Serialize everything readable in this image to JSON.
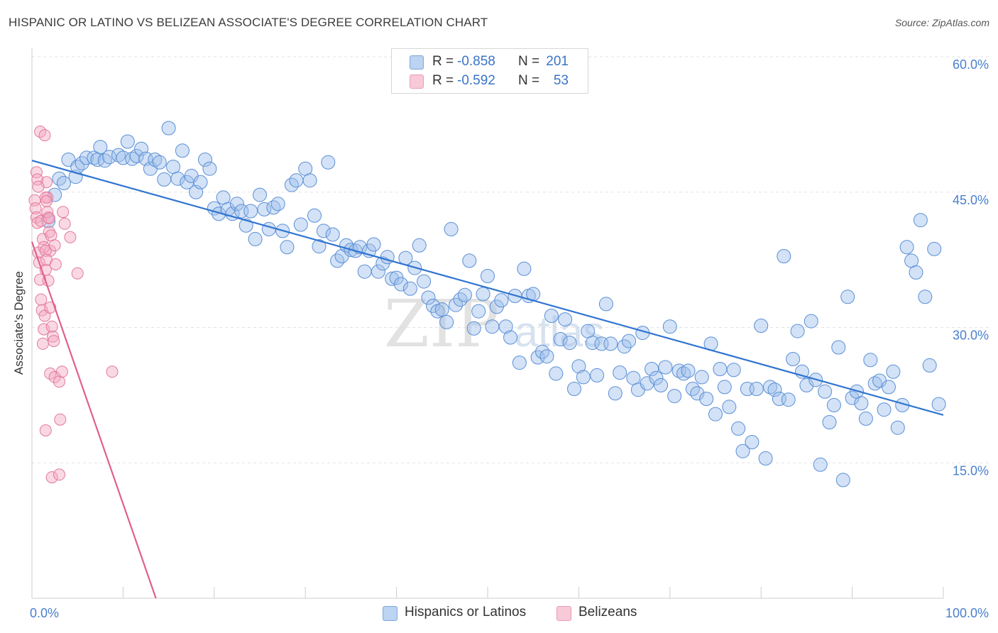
{
  "title": "HISPANIC OR LATINO VS BELIZEAN ASSOCIATE'S DEGREE CORRELATION CHART",
  "source": "Source: ZipAtlas.com",
  "watermark": {
    "zip": "ZIP",
    "atlas": "atlas"
  },
  "legend": {
    "rows": [
      {
        "r_label": "R =",
        "r_value": "-0.858",
        "n_label": "N =",
        "n_value": "201",
        "color": "#9dbfea"
      },
      {
        "r_label": "R =",
        "r_value": "-0.592",
        "n_label": "N =",
        "n_value": "53",
        "color": "#f3a9c0"
      }
    ]
  },
  "bottom_legend": {
    "items": [
      "Hispanics or Latinos",
      "Belizeans"
    ]
  },
  "chart_data": {
    "type": "scatter",
    "ylabel": "Associate's Degree",
    "xlabel": "",
    "xlim": [
      0,
      100
    ],
    "ylim": [
      0,
      60
    ],
    "x_tick_labels": [
      "0.0%",
      "100.0%"
    ],
    "y_ticks": [
      15,
      30,
      45,
      60
    ],
    "y_tick_labels": [
      "15.0%",
      "30.0%",
      "45.0%",
      "60.0%"
    ],
    "grid": true,
    "series": [
      {
        "name": "Hispanics or Latinos",
        "color": "#9dbfea",
        "stroke": "#5a8fd6",
        "trend": {
          "x": [
            0,
            100
          ],
          "y": [
            48.5,
            20.3
          ]
        },
        "points": [
          [
            1.8,
            41.8
          ],
          [
            2.5,
            44.7
          ],
          [
            3,
            46.5
          ],
          [
            3.5,
            46
          ],
          [
            4,
            48.6
          ],
          [
            4.8,
            46.7
          ],
          [
            5,
            47.8
          ],
          [
            5.5,
            48.2
          ],
          [
            6,
            48.8
          ],
          [
            6.8,
            48.8
          ],
          [
            7.2,
            48.6
          ],
          [
            7.5,
            50
          ],
          [
            8,
            48.5
          ],
          [
            8.5,
            48.9
          ],
          [
            9.5,
            49.1
          ],
          [
            10,
            48.8
          ],
          [
            10.5,
            50.6
          ],
          [
            11,
            48.7
          ],
          [
            11.5,
            49
          ],
          [
            12,
            49.8
          ],
          [
            12.5,
            48.7
          ],
          [
            13,
            47.6
          ],
          [
            13.5,
            48.6
          ],
          [
            14,
            48.3
          ],
          [
            14.5,
            46.4
          ],
          [
            15,
            52.1
          ],
          [
            15.5,
            47.8
          ],
          [
            16,
            46.5
          ],
          [
            16.5,
            49.6
          ],
          [
            17,
            46.1
          ],
          [
            17.5,
            46.8
          ],
          [
            18,
            45
          ],
          [
            18.5,
            46.1
          ],
          [
            19,
            48.6
          ],
          [
            19.5,
            47.6
          ],
          [
            20,
            43.2
          ],
          [
            20.5,
            42.6
          ],
          [
            21,
            44.4
          ],
          [
            21.5,
            43.1
          ],
          [
            22,
            42.6
          ],
          [
            22.5,
            43.7
          ],
          [
            23,
            42.9
          ],
          [
            23.5,
            41.3
          ],
          [
            24,
            42.9
          ],
          [
            24.5,
            39.8
          ],
          [
            25,
            44.7
          ],
          [
            25.5,
            43.1
          ],
          [
            26,
            40.9
          ],
          [
            26.5,
            43.3
          ],
          [
            27,
            43.7
          ],
          [
            27.5,
            40.7
          ],
          [
            28,
            38.9
          ],
          [
            28.5,
            45.8
          ],
          [
            29,
            46.3
          ],
          [
            29.5,
            41.4
          ],
          [
            30,
            47.6
          ],
          [
            30.5,
            46.3
          ],
          [
            31,
            42.4
          ],
          [
            31.5,
            39
          ],
          [
            32,
            40.7
          ],
          [
            32.5,
            48.3
          ],
          [
            33,
            40.3
          ],
          [
            33.5,
            37.4
          ],
          [
            34,
            37.9
          ],
          [
            34.5,
            39.1
          ],
          [
            35,
            38.6
          ],
          [
            35.5,
            38.5
          ],
          [
            36,
            38.9
          ],
          [
            36.5,
            36.2
          ],
          [
            37,
            38.5
          ],
          [
            37.5,
            39.2
          ],
          [
            38,
            36.2
          ],
          [
            38.5,
            37.1
          ],
          [
            39,
            37.8
          ],
          [
            39.5,
            35.4
          ],
          [
            40,
            35.5
          ],
          [
            40.5,
            34.8
          ],
          [
            41,
            37.7
          ],
          [
            41.5,
            34.3
          ],
          [
            42,
            36.6
          ],
          [
            42.5,
            39.1
          ],
          [
            43,
            35.1
          ],
          [
            43.5,
            33.3
          ],
          [
            44,
            32.4
          ],
          [
            44.5,
            31.8
          ],
          [
            45,
            32
          ],
          [
            45.5,
            30.6
          ],
          [
            46,
            40.9
          ],
          [
            46.5,
            32.5
          ],
          [
            47,
            33.1
          ],
          [
            47.5,
            33.6
          ],
          [
            48,
            37.4
          ],
          [
            48.5,
            29.9
          ],
          [
            49,
            31.8
          ],
          [
            49.5,
            33.7
          ],
          [
            50,
            35.7
          ],
          [
            50.5,
            30.1
          ],
          [
            51,
            32.3
          ],
          [
            51.5,
            33
          ],
          [
            52,
            30.1
          ],
          [
            52.5,
            28.9
          ],
          [
            53,
            33.5
          ],
          [
            53.5,
            26.1
          ],
          [
            54,
            36.5
          ],
          [
            54.5,
            33.5
          ],
          [
            55,
            33.7
          ],
          [
            55.5,
            26.7
          ],
          [
            56,
            27.3
          ],
          [
            56.5,
            26.8
          ],
          [
            57,
            31.3
          ],
          [
            57.5,
            24.9
          ],
          [
            58,
            28.7
          ],
          [
            58.5,
            30.9
          ],
          [
            59,
            28.3
          ],
          [
            59.5,
            23.2
          ],
          [
            60,
            25.7
          ],
          [
            60.5,
            24.5
          ],
          [
            61,
            29.6
          ],
          [
            61.5,
            28.3
          ],
          [
            62,
            24.7
          ],
          [
            62.5,
            28.2
          ],
          [
            63,
            32.6
          ],
          [
            63.5,
            28.2
          ],
          [
            64,
            22.7
          ],
          [
            64.5,
            25
          ],
          [
            65,
            27.9
          ],
          [
            65.5,
            28.5
          ],
          [
            66,
            24.4
          ],
          [
            66.5,
            23.1
          ],
          [
            67,
            29.4
          ],
          [
            67.5,
            23.8
          ],
          [
            68,
            25.4
          ],
          [
            68.5,
            24.4
          ],
          [
            69,
            23.6
          ],
          [
            69.5,
            25.6
          ],
          [
            70,
            30.1
          ],
          [
            70.5,
            22.4
          ],
          [
            71,
            25.2
          ],
          [
            71.5,
            24.9
          ],
          [
            72,
            25.2
          ],
          [
            72.5,
            23.2
          ],
          [
            73,
            22.7
          ],
          [
            73.5,
            24.5
          ],
          [
            74,
            22.1
          ],
          [
            74.5,
            28.2
          ],
          [
            75,
            20.4
          ],
          [
            75.5,
            25.4
          ],
          [
            76,
            23.4
          ],
          [
            76.5,
            21.2
          ],
          [
            77,
            25.3
          ],
          [
            77.5,
            18.8
          ],
          [
            78,
            16.3
          ],
          [
            78.5,
            23.2
          ],
          [
            79,
            17.3
          ],
          [
            79.5,
            23.2
          ],
          [
            80,
            30.2
          ],
          [
            80.5,
            15.5
          ],
          [
            81,
            23.4
          ],
          [
            81.5,
            23.1
          ],
          [
            82,
            22.1
          ],
          [
            82.5,
            37.9
          ],
          [
            83,
            22
          ],
          [
            83.5,
            26.5
          ],
          [
            84,
            29.6
          ],
          [
            84.5,
            25.1
          ],
          [
            85,
            23.6
          ],
          [
            85.5,
            30.7
          ],
          [
            86,
            24.2
          ],
          [
            86.5,
            14.8
          ],
          [
            87,
            22.9
          ],
          [
            87.5,
            19.5
          ],
          [
            88,
            21.4
          ],
          [
            88.5,
            27.8
          ],
          [
            89,
            13.1
          ],
          [
            89.5,
            33.4
          ],
          [
            90,
            22.2
          ],
          [
            90.5,
            22.9
          ],
          [
            91,
            21.6
          ],
          [
            91.5,
            19.9
          ],
          [
            92,
            26.4
          ],
          [
            92.5,
            23.8
          ],
          [
            93,
            24.1
          ],
          [
            93.5,
            20.9
          ],
          [
            94,
            23.4
          ],
          [
            94.5,
            25.1
          ],
          [
            95,
            18.9
          ],
          [
            95.5,
            21.4
          ],
          [
            96,
            38.9
          ],
          [
            96.5,
            37.4
          ],
          [
            97,
            36.1
          ],
          [
            97.5,
            41.9
          ],
          [
            98,
            33.4
          ],
          [
            98.5,
            25.8
          ],
          [
            99,
            38.7
          ],
          [
            99.5,
            21.5
          ]
        ]
      },
      {
        "name": "Belizeans",
        "color": "#f3a9c0",
        "stroke": "#e27a9a",
        "trend": {
          "x": [
            0,
            13.6
          ],
          "y": [
            39.5,
            0
          ]
        },
        "points": [
          [
            0.3,
            44.1
          ],
          [
            0.4,
            43.2
          ],
          [
            0.5,
            42.2
          ],
          [
            0.6,
            41.6
          ],
          [
            0.7,
            38.3
          ],
          [
            0.8,
            37.2
          ],
          [
            0.9,
            35.3
          ],
          [
            1,
            33.1
          ],
          [
            1.1,
            31.9
          ],
          [
            1.2,
            28.2
          ],
          [
            1.3,
            29.8
          ],
          [
            1.4,
            31.3
          ],
          [
            1.5,
            36.4
          ],
          [
            1.6,
            46.1
          ],
          [
            1.7,
            44.4
          ],
          [
            1.8,
            42.2
          ],
          [
            1.9,
            40.6
          ],
          [
            2,
            38.5
          ],
          [
            0.5,
            47.2
          ],
          [
            0.6,
            46.4
          ],
          [
            0.7,
            45.6
          ],
          [
            1,
            41.8
          ],
          [
            1.2,
            39.8
          ],
          [
            1.3,
            38.9
          ],
          [
            1.5,
            38.5
          ],
          [
            1.6,
            37.5
          ],
          [
            1.8,
            35.2
          ],
          [
            2,
            32.2
          ],
          [
            2.2,
            30.1
          ],
          [
            2.3,
            29
          ],
          [
            2.4,
            28.5
          ],
          [
            0.9,
            51.7
          ],
          [
            1.4,
            51.3
          ],
          [
            1.5,
            44.4
          ],
          [
            1.6,
            44
          ],
          [
            1.7,
            42.8
          ],
          [
            1.9,
            42.1
          ],
          [
            2.1,
            40.2
          ],
          [
            2.5,
            39.1
          ],
          [
            2.6,
            37
          ],
          [
            3.4,
            42.8
          ],
          [
            3.6,
            41.5
          ],
          [
            4.2,
            40
          ],
          [
            5,
            36
          ],
          [
            2,
            24.9
          ],
          [
            2.5,
            24.5
          ],
          [
            3,
            24
          ],
          [
            3.3,
            25.1
          ],
          [
            8.8,
            25.1
          ],
          [
            1.5,
            18.6
          ],
          [
            3.1,
            19.8
          ],
          [
            2.2,
            13.4
          ],
          [
            3,
            13.7
          ]
        ]
      }
    ]
  }
}
